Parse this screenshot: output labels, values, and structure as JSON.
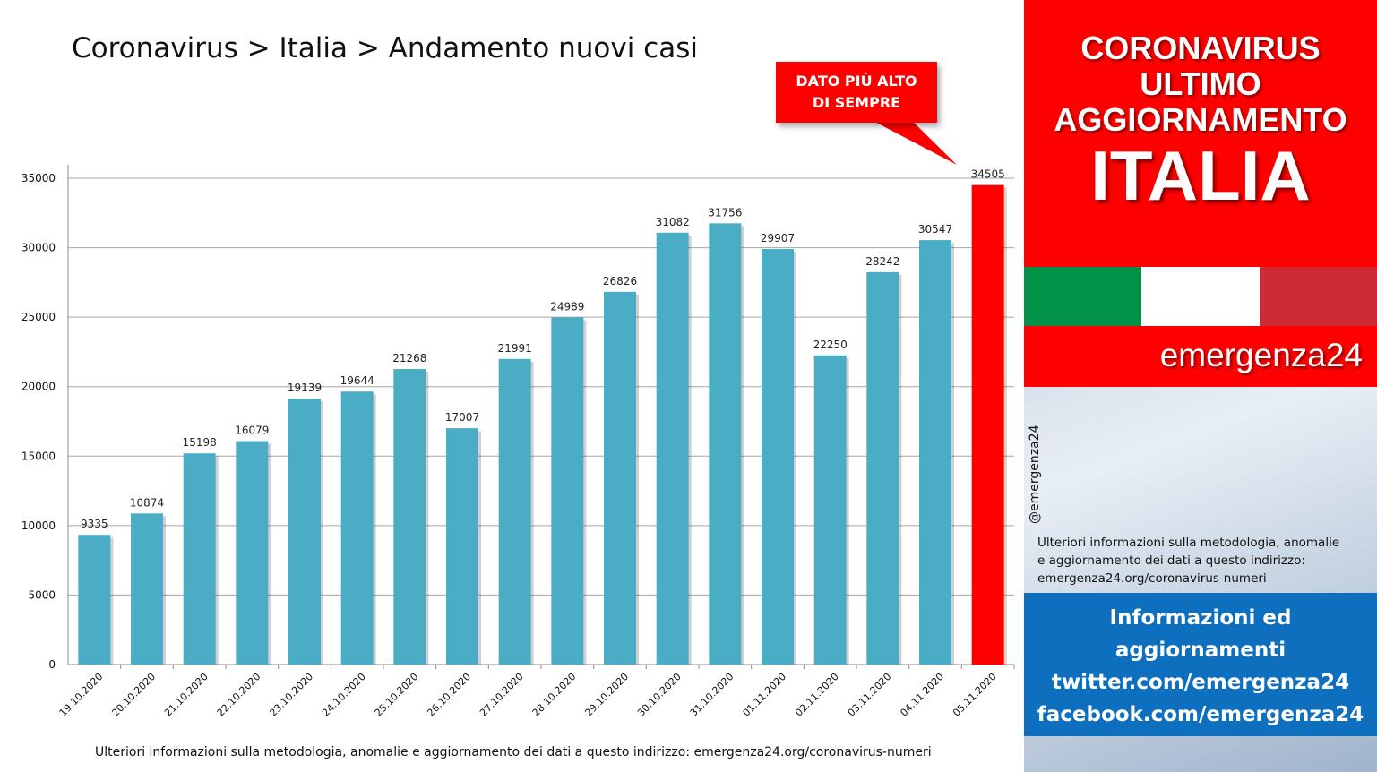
{
  "page": {
    "title": "Coronavirus > Italia > Andamento nuovi casi",
    "callout": [
      "DATO PIÙ ALTO",
      "DI SEMPRE"
    ],
    "footer_note": "Ulteriori informazioni sulla metodologia, anomalie e aggiornamento dei dati a questo indirizzo: emergenza24.org/coronavirus-numeri"
  },
  "panel": {
    "header_lines": [
      "CORONAVIRUS",
      "ULTIMO",
      "AGGIORNAMENTO"
    ],
    "header_big": "ITALIA",
    "flag_colors": [
      "#009246",
      "#ffffff",
      "#ce2b37"
    ],
    "brand": "emergenza24",
    "handle": "@emergenza24",
    "note_lines": [
      "Ulteriori informazioni sulla metodologia, anomalie",
      "e aggiornamento dei dati a questo indirizzo:",
      "emergenza24.org/coronavirus-numeri"
    ],
    "social_lines": [
      "Informazioni ed",
      "aggiornamenti",
      "twitter.com/emergenza24",
      "facebook.com/emergenza24"
    ]
  },
  "chart_data": {
    "type": "bar",
    "title": "Coronavirus > Italia > Andamento nuovi casi",
    "categories": [
      "19.10.2020",
      "20.10.2020",
      "21.10.2020",
      "22.10.2020",
      "23.10.2020",
      "24.10.2020",
      "25.10.2020",
      "26.10.2020",
      "27.10.2020",
      "28.10.2020",
      "29.10.2020",
      "30.10.2020",
      "31.10.2020",
      "01.11.2020",
      "02.11.2020",
      "03.11.2020",
      "04.11.2020",
      "05.11.2020"
    ],
    "values": [
      9335,
      10874,
      15198,
      16079,
      19139,
      19644,
      21268,
      17007,
      21991,
      24989,
      26826,
      31082,
      31756,
      29907,
      22250,
      28242,
      30547,
      34505
    ],
    "ylim": [
      0,
      35000
    ],
    "yticks": [
      0,
      5000,
      10000,
      15000,
      20000,
      25000,
      30000,
      35000
    ],
    "grid": true,
    "bar_color": "#4bacc6",
    "highlight_color": "#ff0000",
    "highlight_index": 17
  }
}
